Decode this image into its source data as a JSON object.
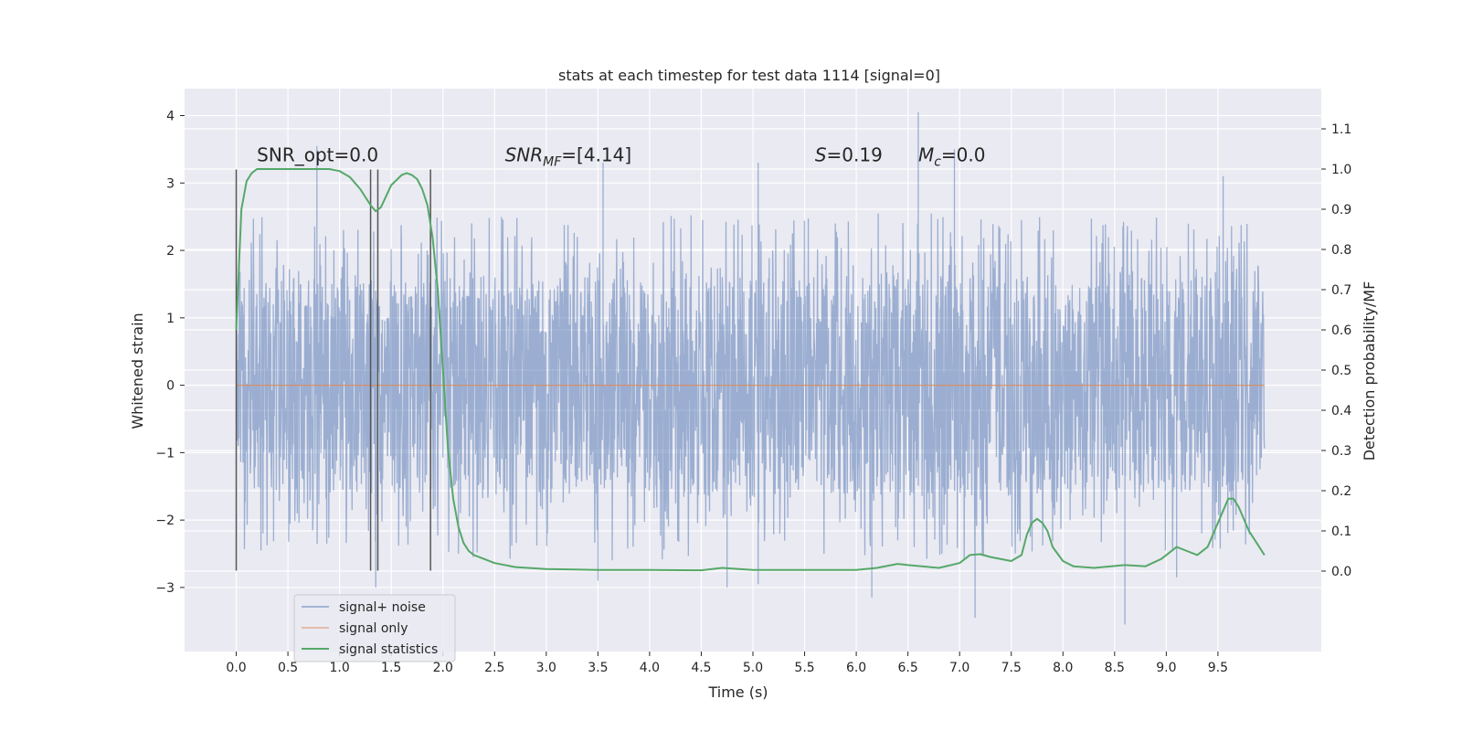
{
  "chart_data": {
    "type": "line",
    "title": "stats at each timestep for test data 1114 [signal=0]",
    "xlabel": "Time (s)",
    "ylabel": "Whitened strain",
    "y2label": "Detection probability/MF",
    "xlim": [
      -0.5,
      10.5
    ],
    "ylim": [
      -3.95,
      4.4
    ],
    "y2lim": [
      -0.2,
      1.2
    ],
    "x_ticks": [
      0.0,
      0.5,
      1.0,
      1.5,
      2.0,
      2.5,
      3.0,
      3.5,
      4.0,
      4.5,
      5.0,
      5.5,
      6.0,
      6.5,
      7.0,
      7.5,
      8.0,
      8.5,
      9.0,
      9.5
    ],
    "x_tick_labels": [
      "0.0",
      "0.5",
      "1.0",
      "1.5",
      "2.0",
      "2.5",
      "3.0",
      "3.5",
      "4.0",
      "4.5",
      "5.0",
      "5.5",
      "6.0",
      "6.5",
      "7.0",
      "7.5",
      "8.0",
      "8.5",
      "9.0",
      "9.5"
    ],
    "y_ticks": [
      -3,
      -2,
      -1,
      0,
      1,
      2,
      3,
      4
    ],
    "y_tick_labels": [
      "−3",
      "−2",
      "−1",
      "0",
      "1",
      "2",
      "3",
      "4"
    ],
    "y2_ticks": [
      0.0,
      0.1,
      0.2,
      0.3,
      0.4,
      0.5,
      0.6,
      0.7,
      0.8,
      0.9,
      1.0,
      1.1
    ],
    "y2_tick_labels": [
      "0.0",
      "0.1",
      "0.2",
      "0.3",
      "0.4",
      "0.5",
      "0.6",
      "0.7",
      "0.8",
      "0.9",
      "1.0",
      "1.1"
    ],
    "grid": true,
    "legend_position": "lower-left",
    "colors": {
      "plot_bg": "#eaeaf2",
      "grid": "#ffffff",
      "signal_noise": "#4c72b0",
      "signal_only": "#dd8452",
      "statistics": "#55a868",
      "vlines": "#555555"
    },
    "series": [
      {
        "name": "signal+ noise",
        "kind": "noise_envelope",
        "x": [
          0.0,
          0.5,
          1.0,
          1.5,
          2.0,
          2.5,
          3.0,
          3.5,
          4.0,
          4.5,
          5.0,
          5.5,
          6.0,
          6.5,
          7.0,
          7.5,
          8.0,
          8.5,
          9.0,
          9.5,
          9.95
        ],
        "core_upper": [
          1.55,
          1.65,
          1.6,
          1.55,
          1.6,
          1.65,
          1.6,
          1.6,
          1.6,
          1.65,
          1.6,
          1.6,
          1.65,
          1.7,
          1.6,
          1.6,
          1.65,
          1.6,
          1.65,
          1.6,
          1.5
        ],
        "core_lower": [
          -1.55,
          -1.6,
          -1.6,
          -1.6,
          -1.6,
          -1.7,
          -1.7,
          -1.7,
          -1.7,
          -1.65,
          -1.7,
          -1.6,
          -1.65,
          -1.7,
          -1.7,
          -1.65,
          -1.65,
          -1.6,
          -1.6,
          -1.6,
          -1.55
        ],
        "spikes": [
          [
            0.78,
            3.55
          ],
          [
            1.35,
            -3.0
          ],
          [
            2.15,
            -2.5
          ],
          [
            3.5,
            -2.9
          ],
          [
            3.55,
            3.3
          ],
          [
            4.75,
            -3.0
          ],
          [
            5.05,
            -2.95
          ],
          [
            5.05,
            3.3
          ],
          [
            6.15,
            -3.15
          ],
          [
            6.6,
            4.05
          ],
          [
            6.95,
            3.5
          ],
          [
            7.15,
            -3.45
          ],
          [
            8.6,
            -3.55
          ],
          [
            9.1,
            -2.85
          ],
          [
            9.55,
            3.1
          ]
        ]
      },
      {
        "name": "signal only",
        "x": [
          0.0,
          9.95
        ],
        "y": [
          0.0,
          0.0
        ]
      },
      {
        "name": "signal statistics",
        "axis": "right",
        "x": [
          0.0,
          0.05,
          0.1,
          0.15,
          0.2,
          0.3,
          0.5,
          0.7,
          0.9,
          1.0,
          1.1,
          1.2,
          1.3,
          1.35,
          1.4,
          1.5,
          1.6,
          1.65,
          1.7,
          1.75,
          1.8,
          1.85,
          1.9,
          1.95,
          2.0,
          2.05,
          2.1,
          2.15,
          2.2,
          2.25,
          2.3,
          2.4,
          2.5,
          2.7,
          3.0,
          3.5,
          4.0,
          4.5,
          4.7,
          5.0,
          5.5,
          6.0,
          6.2,
          6.4,
          6.5,
          6.8,
          7.0,
          7.1,
          7.2,
          7.3,
          7.5,
          7.6,
          7.65,
          7.7,
          7.75,
          7.8,
          7.85,
          7.9,
          8.0,
          8.1,
          8.3,
          8.6,
          8.8,
          8.95,
          9.0,
          9.1,
          9.2,
          9.3,
          9.4,
          9.5,
          9.6,
          9.65,
          9.7,
          9.8,
          9.9,
          9.95
        ],
        "y": [
          0.6,
          0.9,
          0.97,
          0.99,
          1.0,
          1.0,
          1.0,
          1.0,
          1.0,
          0.995,
          0.98,
          0.95,
          0.91,
          0.895,
          0.905,
          0.96,
          0.985,
          0.99,
          0.985,
          0.975,
          0.95,
          0.91,
          0.83,
          0.7,
          0.5,
          0.3,
          0.18,
          0.11,
          0.07,
          0.05,
          0.04,
          0.03,
          0.02,
          0.01,
          0.005,
          0.003,
          0.003,
          0.002,
          0.008,
          0.003,
          0.003,
          0.003,
          0.008,
          0.018,
          0.015,
          0.008,
          0.02,
          0.04,
          0.042,
          0.035,
          0.025,
          0.04,
          0.09,
          0.12,
          0.13,
          0.12,
          0.1,
          0.06,
          0.025,
          0.012,
          0.008,
          0.015,
          0.012,
          0.03,
          0.04,
          0.06,
          0.05,
          0.04,
          0.06,
          0.12,
          0.18,
          0.18,
          0.16,
          0.1,
          0.06,
          0.04
        ]
      }
    ],
    "vlines": [
      {
        "x": 0.0,
        "ymin": -2.75,
        "ymax": 3.2
      },
      {
        "x": 1.3,
        "ymin": -2.75,
        "ymax": 3.2
      },
      {
        "x": 1.37,
        "ymin": -2.75,
        "ymax": 3.2
      },
      {
        "x": 1.88,
        "ymin": -2.75,
        "ymax": 3.2
      }
    ],
    "annotations": [
      {
        "plain": "SNR_opt=0.0",
        "x": 0.2,
        "y": 3.32
      },
      {
        "italic": "SNR",
        "sub": "MF",
        "rest": "=[4.14]",
        "x": 2.6,
        "y": 3.32
      },
      {
        "italic": "S",
        "rest": "=0.19",
        "x": 5.6,
        "y": 3.32
      },
      {
        "italic": "M",
        "sub": "c",
        "rest": "=0.0",
        "x": 6.6,
        "y": 3.32
      }
    ]
  }
}
